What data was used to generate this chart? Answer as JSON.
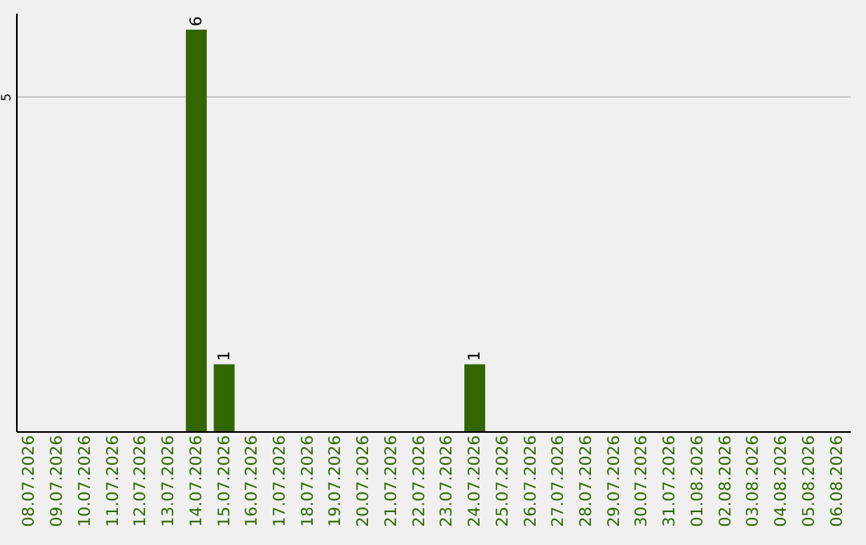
{
  "chart_data": {
    "type": "bar",
    "categories": [
      "08.07.2026",
      "09.07.2026",
      "10.07.2026",
      "11.07.2026",
      "12.07.2026",
      "13.07.2026",
      "14.07.2026",
      "15.07.2026",
      "16.07.2026",
      "17.07.2026",
      "18.07.2026",
      "19.07.2026",
      "20.07.2026",
      "21.07.2026",
      "22.07.2026",
      "23.07.2026",
      "24.07.2026",
      "25.07.2026",
      "26.07.2026",
      "27.07.2026",
      "28.07.2026",
      "29.07.2026",
      "30.07.2026",
      "31.07.2026",
      "01.08.2026",
      "02.08.2026",
      "03.08.2026",
      "04.08.2026",
      "05.08.2026",
      "06.08.2026"
    ],
    "values": [
      null,
      null,
      null,
      null,
      null,
      null,
      6,
      1,
      null,
      null,
      null,
      null,
      null,
      null,
      null,
      null,
      1,
      null,
      null,
      null,
      null,
      null,
      null,
      null,
      null,
      null,
      null,
      null,
      null,
      null
    ],
    "data_labels": true,
    "color": "#336600",
    "ylim": [
      0,
      6.25
    ],
    "yticks": [
      5
    ],
    "grid": "y"
  }
}
